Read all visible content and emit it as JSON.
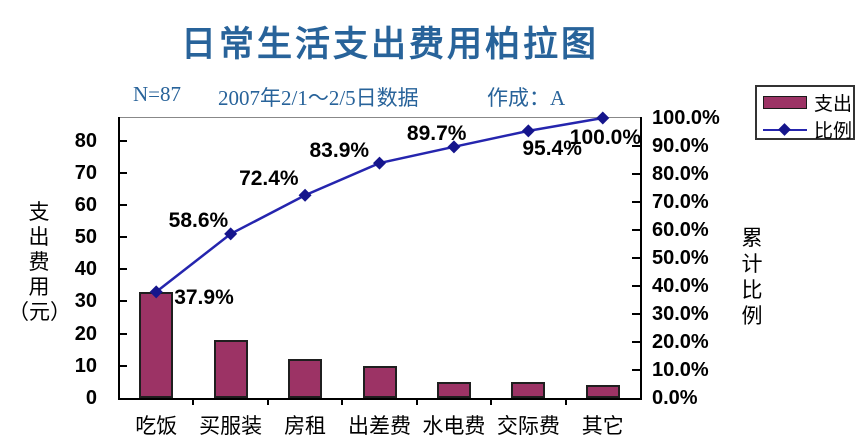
{
  "title": "日常生活支出费用柏拉图",
  "subtitle": {
    "n": "N=87",
    "date": "2007年2/1～2/5日数据",
    "author": "作成：A"
  },
  "legend": {
    "items": [
      {
        "label": "支出",
        "type": "bar"
      },
      {
        "label": "比例",
        "type": "line"
      }
    ]
  },
  "colors": {
    "heading_blue": "#28639A",
    "bar_fill": "#9C3365",
    "bar_border": "#1F1F1F",
    "line_blue": "#2525AE",
    "marker_navy": "#15158C",
    "axis_black": "#000000",
    "plot_top_border": "#888888"
  },
  "chart_data": {
    "type": "bar+line (pareto)",
    "title": "日常生活支出费用柏拉图",
    "categories": [
      "吃饭",
      "买服装",
      "房租",
      "出差费",
      "水电费",
      "交际费",
      "其它"
    ],
    "series": [
      {
        "name": "支出",
        "type": "bar",
        "values": [
          33,
          18,
          12,
          10,
          5,
          5,
          4
        ]
      },
      {
        "name": "比例",
        "type": "line",
        "values_percent": [
          37.9,
          58.6,
          72.4,
          83.9,
          89.7,
          95.4,
          100.0
        ],
        "point_labels": [
          "37.9%",
          "58.6%",
          "72.4%",
          "83.9%",
          "89.7%",
          "95.4%",
          "100.0%"
        ]
      }
    ],
    "y_left": {
      "title_chars": [
        "支",
        "出",
        "费",
        "用",
        "（元）"
      ],
      "tick_values": [
        0,
        10,
        20,
        30,
        40,
        50,
        60,
        70,
        80
      ],
      "tick_labels": [
        "0",
        "10",
        "20",
        "30",
        "40",
        "50",
        "60",
        "70",
        "80"
      ],
      "max": 87
    },
    "y_right": {
      "title_chars": [
        "累",
        "计",
        "比",
        "例"
      ],
      "tick_labels": [
        "0.0%",
        "10.0%",
        "20.0%",
        "30.0%",
        "40.0%",
        "50.0%",
        "60.0%",
        "70.0%",
        "80.0%",
        "90.0%",
        "100.0%"
      ],
      "max_percent": 100
    },
    "legend_position": "top-right",
    "grid": "off"
  }
}
